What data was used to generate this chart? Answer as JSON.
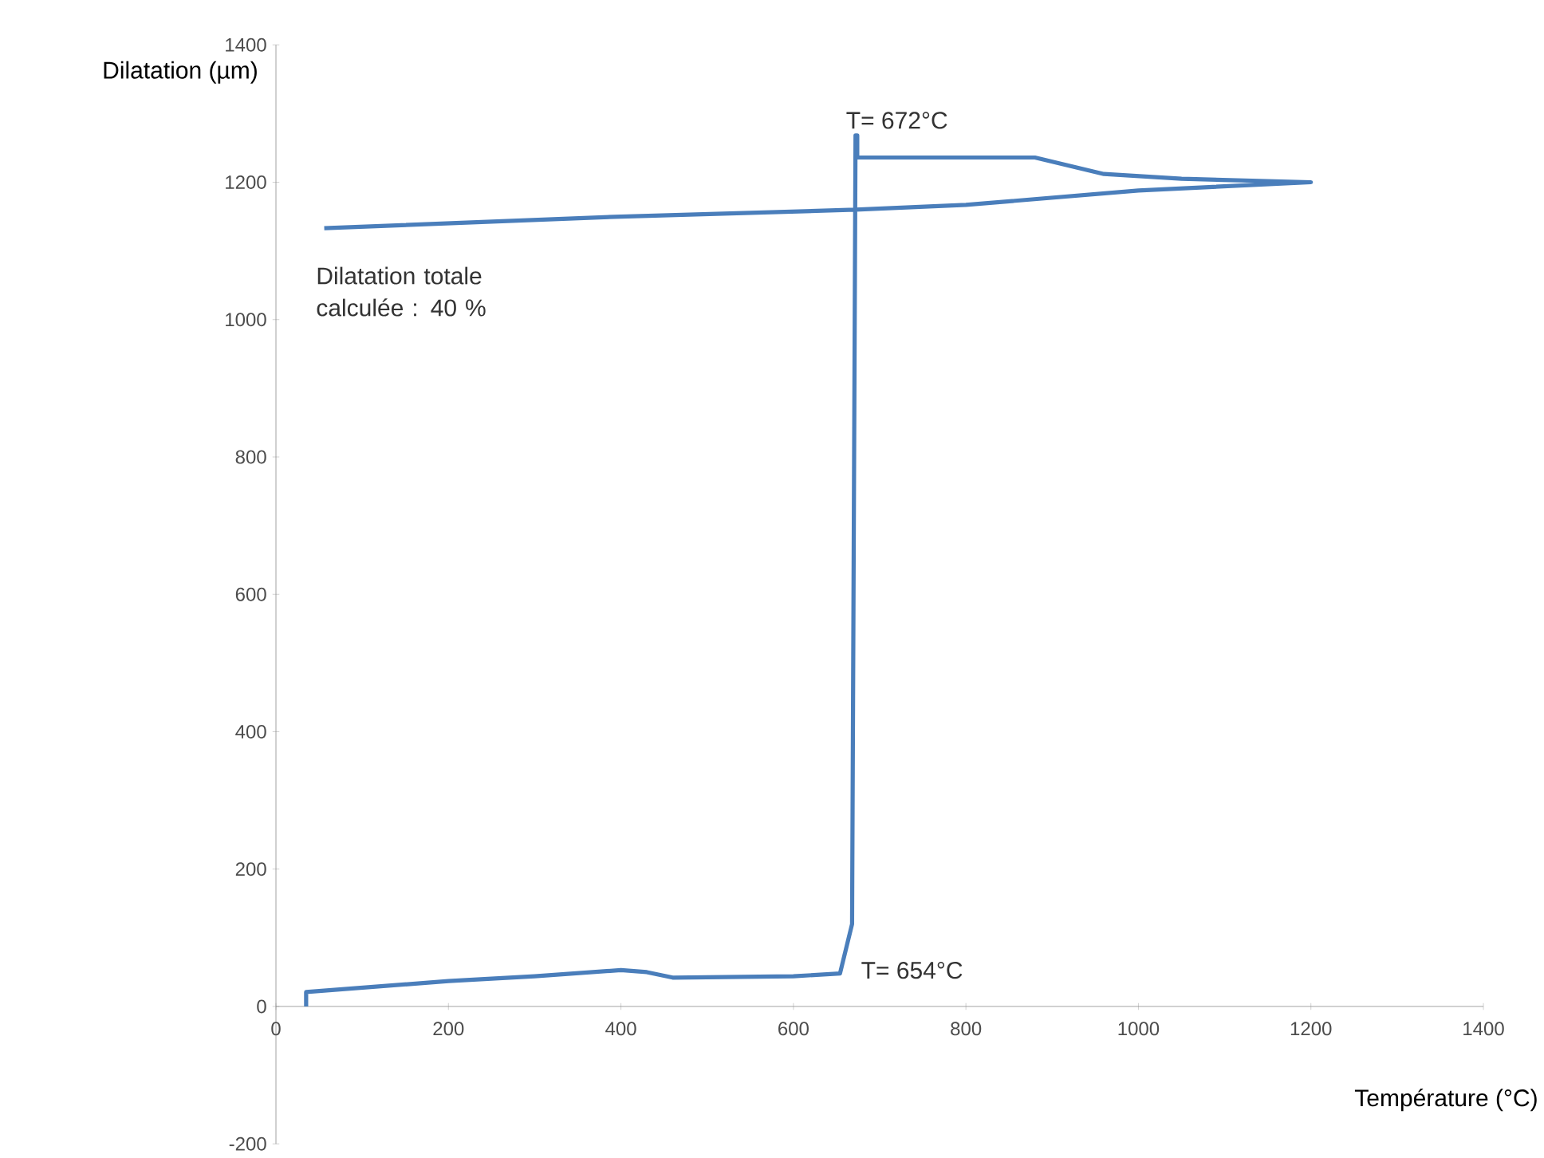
{
  "chart_data": {
    "type": "line",
    "xlabel": "Température (°C)",
    "ylabel": "Dilatation (µm)",
    "xlim": [
      0,
      1400
    ],
    "ylim": [
      -200,
      1400
    ],
    "xticks": [
      0,
      200,
      400,
      600,
      800,
      1000,
      1200,
      1400
    ],
    "yticks": [
      {
        "value": -200,
        "label": "-200"
      },
      0,
      200,
      400,
      600,
      800,
      1000,
      1200,
      1400
    ],
    "marker": "none",
    "line_style": "solid",
    "series": [
      {
        "color": "#4a7ebb",
        "x": [
          35,
          35,
          200,
          300,
          400,
          430,
          460,
          600,
          654,
          668,
          672,
          674,
          674,
          880,
          960,
          1050,
          1200,
          1000,
          800,
          672,
          400,
          56
        ],
        "values": [
          0,
          21,
          37,
          44,
          53,
          50,
          42,
          44,
          48,
          120,
          1268,
          1268,
          1236,
          1236,
          1212,
          1205,
          1200,
          1188,
          1167,
          1160,
          1150,
          1133
        ]
      }
    ],
    "annotations": [
      {
        "text": "T= 672°C",
        "x": 672,
        "y": 1268
      },
      {
        "text": "T= 654°C",
        "x": 654,
        "y": 48
      },
      "Dilatation totale calculée : 40 %"
    ]
  }
}
